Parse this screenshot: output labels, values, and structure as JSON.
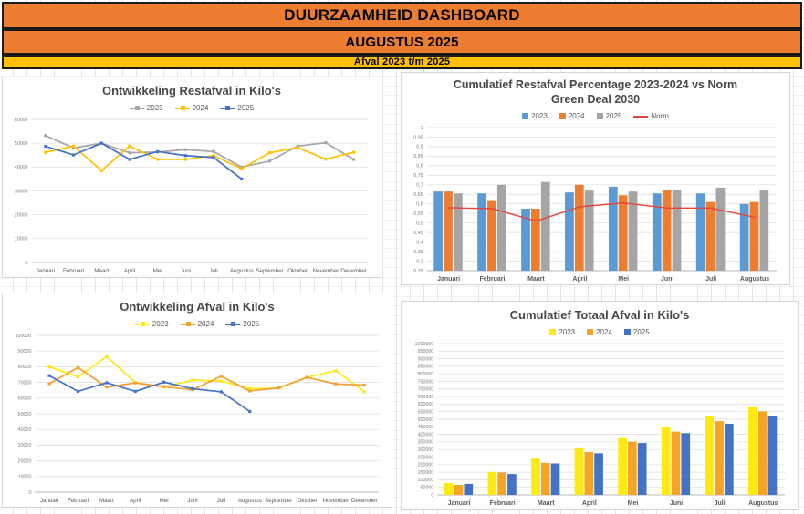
{
  "header": {
    "title": "DUURZAAMHEID DASHBOARD",
    "subtitle": "AUGUSTUS 2025",
    "band": "Afval 2023 t/m 2025",
    "header_bg": "#ED7D31",
    "band_bg": "#FFC000"
  },
  "chart_data": [
    {
      "id": "ontwikkeling-restafval",
      "type": "line",
      "title": "Ontwikkeling Restafval in Kilo's",
      "categories": [
        "Januari",
        "Februari",
        "Maart",
        "April",
        "Mei",
        "Juni",
        "Juli",
        "Augustus",
        "September",
        "Oktober",
        "November",
        "December"
      ],
      "ylim": [
        0,
        60000
      ],
      "ystep": 10000,
      "decimal_comma": false,
      "grid": true,
      "legend_position": "top",
      "series": [
        {
          "name": "2023",
          "kind": "line",
          "swatch": "line-marker",
          "color": "#A6A6A6",
          "values": [
            53200,
            48000,
            50000,
            46000,
            46300,
            47300,
            46500,
            40000,
            42500,
            48800,
            50200,
            43200
          ]
        },
        {
          "name": "2024",
          "kind": "line",
          "swatch": "line-marker",
          "color": "#FFC000",
          "values": [
            46200,
            48800,
            38500,
            48800,
            43200,
            43200,
            44800,
            39300,
            46000,
            48200,
            43300,
            46200
          ]
        },
        {
          "name": "2025",
          "kind": "line",
          "swatch": "line-marker",
          "color": "#4472C4",
          "values": [
            48700,
            45100,
            50000,
            43200,
            46500,
            44800,
            44000,
            35000
          ]
        }
      ]
    },
    {
      "id": "cumulatief-restafval-percentage",
      "type": "bar",
      "title": "Cumulatief Restafval Percentage  2023-2024 vs Norm\nGreen Deal 2030",
      "categories": [
        "Januari",
        "Februari",
        "Maart",
        "April",
        "Mei",
        "Juni",
        "Juli",
        "Augustus"
      ],
      "ylim": [
        0.25,
        1
      ],
      "ystep": 0.05,
      "decimal_comma": true,
      "grid": true,
      "legend_position": "top",
      "series": [
        {
          "name": "2023",
          "kind": "bar",
          "swatch": "rect",
          "color": "#5B9BD5",
          "values": [
            0.665,
            0.655,
            0.575,
            0.66,
            0.69,
            0.655,
            0.655,
            0.6
          ]
        },
        {
          "name": "2024",
          "kind": "bar",
          "swatch": "rect",
          "color": "#ED7D31",
          "values": [
            0.665,
            0.615,
            0.575,
            0.7,
            0.645,
            0.67,
            0.61,
            0.61
          ]
        },
        {
          "name": "2025",
          "kind": "bar",
          "swatch": "rect",
          "color": "#A5A5A5",
          "values": [
            0.655,
            0.7,
            0.715,
            0.67,
            0.665,
            0.675,
            0.685,
            0.675
          ]
        },
        {
          "name": "Norm",
          "kind": "line",
          "swatch": "line",
          "color": "#E8443A",
          "marker": false,
          "values": [
            0.58,
            0.575,
            0.51,
            0.585,
            0.605,
            0.578,
            0.578,
            0.53
          ]
        }
      ]
    },
    {
      "id": "ontwikkeling-afval",
      "type": "line",
      "title": "Ontwikkeling Afval in Kilo's",
      "categories": [
        "Januari",
        "Februari",
        "Maart",
        "April",
        "Mei",
        "Juni",
        "Juli",
        "Augustus",
        "September",
        "Oktober",
        "November",
        "December"
      ],
      "ylim": [
        0,
        100000
      ],
      "ystep": 10000,
      "decimal_comma": false,
      "grid": true,
      "legend_position": "top",
      "series": [
        {
          "name": "2023",
          "kind": "line",
          "swatch": "line-marker",
          "color": "#FFE912",
          "values": [
            80000,
            73500,
            86500,
            70000,
            67000,
            71500,
            70800,
            66000,
            66300,
            73200,
            77500,
            64000
          ]
        },
        {
          "name": "2024",
          "kind": "line",
          "swatch": "line-marker",
          "color": "#F2A033",
          "values": [
            69200,
            79500,
            67000,
            69700,
            67300,
            65300,
            74000,
            64500,
            66500,
            73200,
            69000,
            68300
          ]
        },
        {
          "name": "2025",
          "kind": "line",
          "swatch": "line-marker",
          "color": "#4472C4",
          "values": [
            74300,
            64300,
            69800,
            64300,
            70200,
            66000,
            64000,
            51500
          ]
        }
      ]
    },
    {
      "id": "cumulatief-totaal-afval",
      "type": "bar",
      "title": "Cumulatief Totaal Afval in Kilo's",
      "categories": [
        "Januari",
        "Februari",
        "Maart",
        "April",
        "Mei",
        "Juni",
        "Juli",
        "Augustus"
      ],
      "ylim": [
        0,
        1000000
      ],
      "ystep": 50000,
      "decimal_comma": false,
      "grid": true,
      "legend_position": "top",
      "series": [
        {
          "name": "2023",
          "kind": "bar",
          "swatch": "rect",
          "color": "#FFE912",
          "values": [
            78000,
            152000,
            240000,
            308000,
            375000,
            448000,
            518000,
            580000
          ]
        },
        {
          "name": "2024",
          "kind": "bar",
          "swatch": "rect",
          "color": "#F5A428",
          "values": [
            66000,
            148000,
            212000,
            283000,
            352000,
            418000,
            488000,
            552000
          ]
        },
        {
          "name": "2025",
          "kind": "bar",
          "swatch": "rect",
          "color": "#4472C4",
          "values": [
            73000,
            138000,
            208000,
            275000,
            343000,
            408000,
            470000,
            522000
          ]
        }
      ]
    }
  ]
}
